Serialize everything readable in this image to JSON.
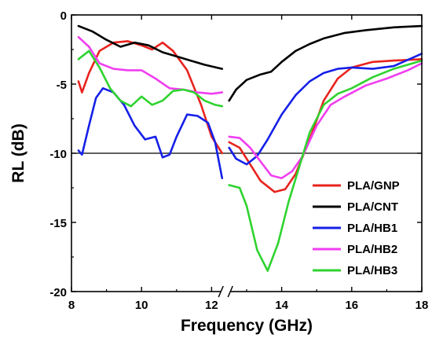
{
  "chart_data": {
    "type": "line",
    "title": "",
    "xlabel": "Frequency (GHz)",
    "ylabel": "RL (dB)",
    "xlim": [
      8,
      18
    ],
    "ylim": [
      -20,
      0
    ],
    "x_ticks": [
      "8",
      "10",
      "12",
      "14",
      "16",
      "18"
    ],
    "y_ticks": [
      "0",
      "-5",
      "-10",
      "-15",
      "-20"
    ],
    "x_axis_break": [
      12.3,
      12.5
    ],
    "reference_line_y": -10,
    "legend_position": "lower-right",
    "series": [
      {
        "name": "PLA/GNP",
        "color": "#e8231e",
        "segments": [
          [
            [
              8.2,
              -4.8
            ],
            [
              8.3,
              -5.6
            ],
            [
              8.5,
              -4.2
            ],
            [
              8.8,
              -2.6
            ],
            [
              9.2,
              -2.0
            ],
            [
              9.6,
              -1.9
            ],
            [
              10.0,
              -2.2
            ],
            [
              10.3,
              -2.5
            ],
            [
              10.6,
              -2.0
            ],
            [
              10.9,
              -2.6
            ],
            [
              11.3,
              -4.0
            ],
            [
              11.7,
              -6.5
            ],
            [
              12.0,
              -8.8
            ],
            [
              12.3,
              -10.0
            ]
          ],
          [
            [
              12.5,
              -9.2
            ],
            [
              12.8,
              -9.6
            ],
            [
              13.1,
              -10.8
            ],
            [
              13.4,
              -12.0
            ],
            [
              13.8,
              -12.8
            ],
            [
              14.1,
              -12.6
            ],
            [
              14.4,
              -11.5
            ],
            [
              14.8,
              -9.0
            ],
            [
              15.2,
              -6.2
            ],
            [
              15.6,
              -4.6
            ],
            [
              16.0,
              -3.8
            ],
            [
              16.6,
              -3.4
            ],
            [
              17.2,
              -3.3
            ],
            [
              18.0,
              -3.2
            ]
          ]
        ]
      },
      {
        "name": "PLA/CNT",
        "color": "#000000",
        "segments": [
          [
            [
              8.2,
              -0.8
            ],
            [
              8.6,
              -1.2
            ],
            [
              9.0,
              -1.8
            ],
            [
              9.4,
              -2.3
            ],
            [
              9.8,
              -2.0
            ],
            [
              10.2,
              -2.2
            ],
            [
              10.6,
              -2.7
            ],
            [
              11.0,
              -3.0
            ],
            [
              11.4,
              -3.3
            ],
            [
              11.8,
              -3.6
            ],
            [
              12.3,
              -3.9
            ]
          ],
          [
            [
              12.5,
              -6.2
            ],
            [
              12.7,
              -5.4
            ],
            [
              13.0,
              -4.7
            ],
            [
              13.4,
              -4.3
            ],
            [
              13.7,
              -4.1
            ],
            [
              14.0,
              -3.4
            ],
            [
              14.4,
              -2.6
            ],
            [
              14.8,
              -2.1
            ],
            [
              15.2,
              -1.7
            ],
            [
              15.8,
              -1.3
            ],
            [
              16.4,
              -1.1
            ],
            [
              17.2,
              -0.9
            ],
            [
              18.0,
              -0.8
            ]
          ]
        ]
      },
      {
        "name": "PLA/HB1",
        "color": "#1520e8",
        "segments": [
          [
            [
              8.2,
              -9.8
            ],
            [
              8.3,
              -10.1
            ],
            [
              8.5,
              -8.0
            ],
            [
              8.7,
              -6.0
            ],
            [
              8.9,
              -5.3
            ],
            [
              9.2,
              -5.6
            ],
            [
              9.5,
              -6.5
            ],
            [
              9.8,
              -8.0
            ],
            [
              10.1,
              -9.0
            ],
            [
              10.4,
              -8.8
            ],
            [
              10.6,
              -10.3
            ],
            [
              10.8,
              -10.1
            ],
            [
              11.0,
              -8.8
            ],
            [
              11.3,
              -7.2
            ],
            [
              11.6,
              -7.3
            ],
            [
              11.9,
              -7.8
            ],
            [
              12.1,
              -9.2
            ],
            [
              12.3,
              -11.8
            ]
          ],
          [
            [
              12.5,
              -9.6
            ],
            [
              12.7,
              -10.4
            ],
            [
              13.0,
              -10.8
            ],
            [
              13.3,
              -10.2
            ],
            [
              13.6,
              -9.0
            ],
            [
              14.0,
              -7.2
            ],
            [
              14.4,
              -5.8
            ],
            [
              14.8,
              -4.8
            ],
            [
              15.2,
              -4.2
            ],
            [
              15.6,
              -3.9
            ],
            [
              16.0,
              -3.8
            ],
            [
              16.6,
              -3.9
            ],
            [
              17.2,
              -3.7
            ],
            [
              18.0,
              -2.8
            ]
          ]
        ]
      },
      {
        "name": "PLA/HB2",
        "color": "#f03ef0",
        "segments": [
          [
            [
              8.2,
              -1.6
            ],
            [
              8.5,
              -2.3
            ],
            [
              8.8,
              -3.5
            ],
            [
              9.2,
              -3.9
            ],
            [
              9.6,
              -4.0
            ],
            [
              10.0,
              -4.0
            ],
            [
              10.4,
              -4.6
            ],
            [
              10.8,
              -5.3
            ],
            [
              11.2,
              -5.4
            ],
            [
              11.6,
              -5.6
            ],
            [
              12.0,
              -5.7
            ],
            [
              12.3,
              -5.6
            ]
          ],
          [
            [
              12.5,
              -8.8
            ],
            [
              12.8,
              -8.9
            ],
            [
              13.1,
              -9.6
            ],
            [
              13.4,
              -10.6
            ],
            [
              13.7,
              -11.6
            ],
            [
              14.0,
              -11.8
            ],
            [
              14.3,
              -11.3
            ],
            [
              14.6,
              -10.2
            ],
            [
              15.0,
              -8.0
            ],
            [
              15.4,
              -6.5
            ],
            [
              15.8,
              -5.9
            ],
            [
              16.4,
              -5.1
            ],
            [
              17.0,
              -4.6
            ],
            [
              17.6,
              -4.0
            ],
            [
              18.0,
              -3.5
            ]
          ]
        ]
      },
      {
        "name": "PLA/HB3",
        "color": "#2fd32f",
        "segments": [
          [
            [
              8.2,
              -3.2
            ],
            [
              8.5,
              -2.6
            ],
            [
              8.8,
              -3.8
            ],
            [
              9.1,
              -5.3
            ],
            [
              9.4,
              -6.2
            ],
            [
              9.7,
              -6.6
            ],
            [
              10.0,
              -5.9
            ],
            [
              10.3,
              -6.5
            ],
            [
              10.6,
              -6.2
            ],
            [
              10.9,
              -5.5
            ],
            [
              11.2,
              -5.4
            ],
            [
              11.5,
              -5.6
            ],
            [
              11.8,
              -6.2
            ],
            [
              12.1,
              -6.5
            ],
            [
              12.3,
              -6.6
            ]
          ],
          [
            [
              12.5,
              -12.3
            ],
            [
              12.8,
              -12.5
            ],
            [
              13.0,
              -13.8
            ],
            [
              13.3,
              -17.0
            ],
            [
              13.6,
              -18.5
            ],
            [
              13.9,
              -16.5
            ],
            [
              14.2,
              -13.5
            ],
            [
              14.5,
              -11.0
            ],
            [
              14.8,
              -8.5
            ],
            [
              15.2,
              -6.5
            ],
            [
              15.6,
              -5.7
            ],
            [
              16.0,
              -5.3
            ],
            [
              16.6,
              -4.5
            ],
            [
              17.2,
              -3.9
            ],
            [
              18.0,
              -3.3
            ]
          ]
        ]
      }
    ]
  }
}
